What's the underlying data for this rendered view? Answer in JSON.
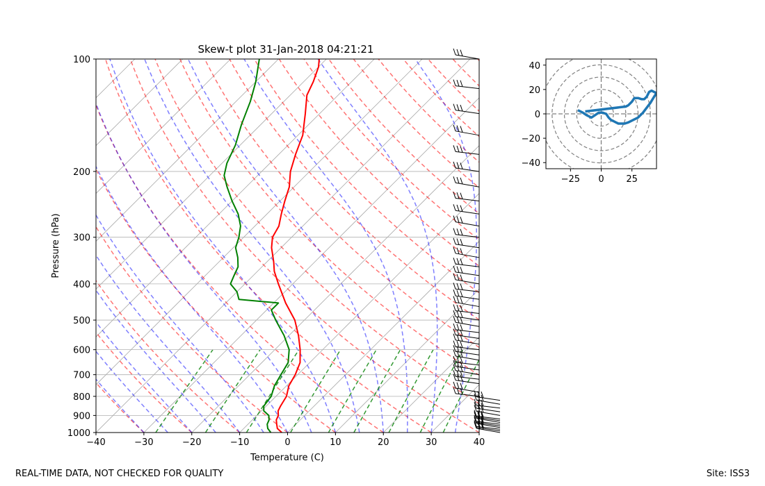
{
  "chart_data": [
    {
      "type": "line",
      "title": "Skew-t plot 31-Jan-2018 04:21:21",
      "xlabel": "Temperature (C)",
      "ylabel": "Pressure (hPa)",
      "xlim": [
        -40,
        40
      ],
      "ylim": [
        1000,
        100
      ],
      "y_scale": "log",
      "x_ticks": [
        "−40",
        "−30",
        "−20",
        "−10",
        "0",
        "10",
        "20",
        "30",
        "40"
      ],
      "y_ticks": [
        "1000",
        "900",
        "800",
        "700",
        "600",
        "500",
        "400",
        "300",
        "200",
        "100"
      ],
      "grid": true,
      "series": [
        {
          "role": "temperature",
          "color": "#ff0000",
          "points": [
            [
              1000,
              -1.2
            ],
            [
              975,
              -3.0
            ],
            [
              950,
              -4.0
            ],
            [
              925,
              -5.0
            ],
            [
              900,
              -5.5
            ],
            [
              875,
              -6.5
            ],
            [
              850,
              -7.0
            ],
            [
              800,
              -7.8
            ],
            [
              750,
              -9.5
            ],
            [
              700,
              -10.5
            ],
            [
              650,
              -12.0
            ],
            [
              600,
              -14.7
            ],
            [
              550,
              -18.0
            ],
            [
              500,
              -22.0
            ],
            [
              450,
              -27.5
            ],
            [
              400,
              -33.0
            ],
            [
              370,
              -36.5
            ],
            [
              350,
              -38.5
            ],
            [
              320,
              -42.0
            ],
            [
              300,
              -44.0
            ],
            [
              280,
              -45.0
            ],
            [
              260,
              -47.0
            ],
            [
              240,
              -49.0
            ],
            [
              220,
              -51.0
            ],
            [
              200,
              -54.0
            ],
            [
              180,
              -56.5
            ],
            [
              160,
              -59.0
            ],
            [
              140,
              -63.0
            ],
            [
              125,
              -66.5
            ],
            [
              115,
              -68.0
            ],
            [
              105,
              -70.0
            ],
            [
              100,
              -71.5
            ]
          ]
        },
        {
          "role": "dewpoint",
          "color": "#008000",
          "points": [
            [
              1000,
              -3.5
            ],
            [
              975,
              -5.0
            ],
            [
              950,
              -6.0
            ],
            [
              925,
              -6.5
            ],
            [
              900,
              -7.5
            ],
            [
              875,
              -9.5
            ],
            [
              850,
              -10.5
            ],
            [
              800,
              -11.0
            ],
            [
              750,
              -12.5
            ],
            [
              700,
              -13.5
            ],
            [
              650,
              -14.5
            ],
            [
              600,
              -17.0
            ],
            [
              550,
              -21.0
            ],
            [
              500,
              -26.0
            ],
            [
              470,
              -29.0
            ],
            [
              450,
              -29.0
            ],
            [
              440,
              -38.0
            ],
            [
              420,
              -40.0
            ],
            [
              400,
              -43.0
            ],
            [
              380,
              -44.0
            ],
            [
              360,
              -45.0
            ],
            [
              340,
              -47.0
            ],
            [
              320,
              -49.5
            ],
            [
              300,
              -51.0
            ],
            [
              280,
              -53.0
            ],
            [
              260,
              -56.0
            ],
            [
              240,
              -60.0
            ],
            [
              220,
              -64.0
            ],
            [
              205,
              -67.0
            ],
            [
              190,
              -69.0
            ],
            [
              170,
              -71.0
            ],
            [
              150,
              -74.0
            ],
            [
              130,
              -77.0
            ],
            [
              115,
              -80.0
            ],
            [
              100,
              -84.0
            ]
          ]
        }
      ],
      "background_lines": {
        "dry_adiabats": {
          "color": "#ff0000",
          "style": "dashed"
        },
        "moist_adiabats": {
          "color": "#0000ff",
          "style": "dashed"
        },
        "mixing_ratio": {
          "color": "#008000",
          "style": "dashed"
        },
        "isotherms": {
          "color": "#808080",
          "style": "solid"
        }
      },
      "wind_barbs": {
        "color": "#000000",
        "levels": [
          1000,
          990,
          980,
          970,
          960,
          950,
          940,
          930,
          920,
          900,
          880,
          860,
          840,
          820,
          800,
          780,
          740,
          720,
          700,
          680,
          660,
          640,
          620,
          600,
          580,
          560,
          540,
          520,
          500,
          480,
          460,
          440,
          420,
          400,
          380,
          360,
          340,
          320,
          300,
          280,
          260,
          240,
          220,
          200,
          180,
          160,
          140,
          120,
          100
        ]
      }
    },
    {
      "type": "line",
      "title": "",
      "xlim": [
        -45,
        45
      ],
      "ylim": [
        -45,
        45
      ],
      "x_ticks": [
        "−25",
        "0",
        "25"
      ],
      "y_ticks": [
        "40",
        "20",
        "0",
        "−20",
        "−40"
      ],
      "rings": [
        10,
        20,
        30,
        40,
        50
      ],
      "series": [
        {
          "role": "hodograph",
          "color": "#1f77b4",
          "points": [
            [
              -19,
              3
            ],
            [
              -15,
              1
            ],
            [
              -12,
              -1
            ],
            [
              -8,
              -3
            ],
            [
              -5,
              -1
            ],
            [
              -2,
              1
            ],
            [
              1,
              1
            ],
            [
              4,
              0
            ],
            [
              6,
              -3
            ],
            [
              8,
              -5
            ],
            [
              10,
              -6
            ],
            [
              12,
              -7
            ],
            [
              14,
              -8
            ],
            [
              16,
              -8
            ],
            [
              19,
              -8
            ],
            [
              22,
              -7
            ],
            [
              26,
              -5
            ],
            [
              30,
              -3
            ],
            [
              34,
              1
            ],
            [
              37,
              5
            ],
            [
              40,
              9
            ],
            [
              43,
              14
            ],
            [
              45,
              17
            ],
            [
              41,
              19
            ],
            [
              39,
              18
            ],
            [
              37,
              14
            ],
            [
              35,
              12
            ],
            [
              33,
              12
            ],
            [
              30,
              13
            ],
            [
              27,
              13
            ],
            [
              25,
              10
            ],
            [
              22,
              7
            ],
            [
              20,
              6
            ],
            [
              -13,
              2
            ]
          ]
        }
      ]
    }
  ],
  "footer": {
    "left": "REAL-TIME DATA, NOT CHECKED FOR QUALITY",
    "right": "Site: ISS3"
  }
}
